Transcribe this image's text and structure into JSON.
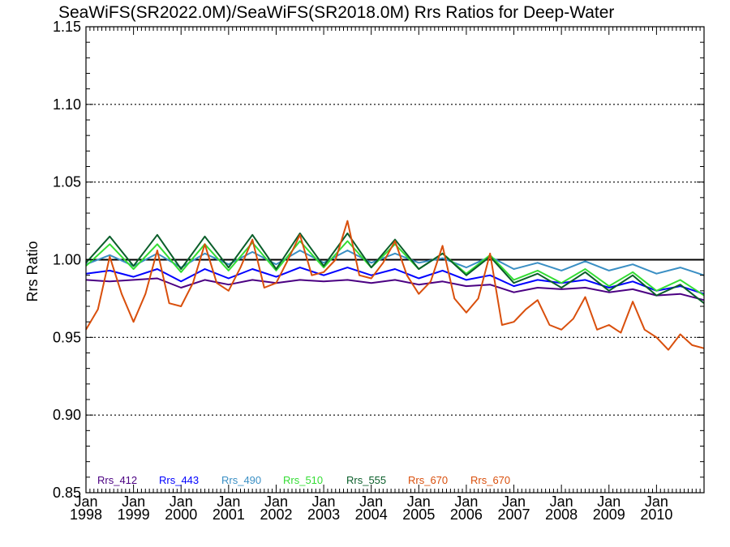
{
  "chart_data": {
    "type": "line",
    "title": "SeaWiFS(SR2022.0M)/SeaWiFS(SR2018.0M)  Rrs Ratios for Deep-Water",
    "ylabel": "Rrs Ratio",
    "xlabel": "",
    "ylim": [
      0.85,
      1.15
    ],
    "yticks": [
      "0.85",
      "0.90",
      "0.95",
      "1.00",
      "1.05",
      "1.10",
      "1.15"
    ],
    "xlim": [
      1998.0,
      2011.0
    ],
    "xticks": [
      {
        "month": "Jan",
        "year": "1998"
      },
      {
        "month": "Jan",
        "year": "1999"
      },
      {
        "month": "Jan",
        "year": "2000"
      },
      {
        "month": "Jan",
        "year": "2001"
      },
      {
        "month": "Jan",
        "year": "2002"
      },
      {
        "month": "Jan",
        "year": "2003"
      },
      {
        "month": "Jan",
        "year": "2004"
      },
      {
        "month": "Jan",
        "year": "2005"
      },
      {
        "month": "Jan",
        "year": "2006"
      },
      {
        "month": "Jan",
        "year": "2007"
      },
      {
        "month": "Jan",
        "year": "2008"
      },
      {
        "month": "Jan",
        "year": "2009"
      },
      {
        "month": "Jan",
        "year": "2010"
      }
    ],
    "grid": "dotted horizontal at labeled y ticks",
    "reference_line": 1.0,
    "legend_position": "bottom-left",
    "series": [
      {
        "name": "Rrs_412",
        "color": "#4b0082",
        "x": [
          1998.0,
          1998.5,
          1999.0,
          1999.5,
          2000.0,
          2000.5,
          2001.0,
          2001.5,
          2002.0,
          2002.5,
          2003.0,
          2003.5,
          2004.0,
          2004.5,
          2005.0,
          2005.5,
          2006.0,
          2006.5,
          2007.0,
          2007.5,
          2008.0,
          2008.5,
          2009.0,
          2009.5,
          2010.0,
          2010.5,
          2011.0
        ],
        "values": [
          0.987,
          0.986,
          0.987,
          0.988,
          0.982,
          0.987,
          0.984,
          0.987,
          0.985,
          0.987,
          0.986,
          0.987,
          0.985,
          0.987,
          0.984,
          0.986,
          0.983,
          0.984,
          0.979,
          0.982,
          0.981,
          0.982,
          0.979,
          0.981,
          0.977,
          0.978,
          0.974
        ]
      },
      {
        "name": "Rrs_443",
        "color": "#0000ff",
        "x": [
          1998.0,
          1998.5,
          1999.0,
          1999.5,
          2000.0,
          2000.5,
          2001.0,
          2001.5,
          2002.0,
          2002.5,
          2003.0,
          2003.5,
          2004.0,
          2004.5,
          2005.0,
          2005.5,
          2006.0,
          2006.5,
          2007.0,
          2007.5,
          2008.0,
          2008.5,
          2009.0,
          2009.5,
          2010.0,
          2010.5,
          2011.0
        ],
        "values": [
          0.991,
          0.993,
          0.989,
          0.994,
          0.986,
          0.994,
          0.988,
          0.994,
          0.989,
          0.995,
          0.99,
          0.995,
          0.99,
          0.994,
          0.988,
          0.993,
          0.987,
          0.99,
          0.983,
          0.987,
          0.985,
          0.987,
          0.982,
          0.986,
          0.98,
          0.983,
          0.978
        ]
      },
      {
        "name": "Rrs_490",
        "color": "#3a8fc4",
        "x": [
          1998.0,
          1998.5,
          1999.0,
          1999.5,
          2000.0,
          2000.5,
          2001.0,
          2001.5,
          2002.0,
          2002.5,
          2003.0,
          2003.5,
          2004.0,
          2004.5,
          2005.0,
          2005.5,
          2006.0,
          2006.5,
          2007.0,
          2007.5,
          2008.0,
          2008.5,
          2009.0,
          2009.5,
          2010.0,
          2010.5,
          2011.0
        ],
        "values": [
          0.997,
          1.003,
          0.996,
          1.004,
          0.995,
          1.004,
          0.997,
          1.005,
          0.997,
          1.006,
          0.998,
          1.006,
          0.998,
          1.004,
          0.998,
          1.001,
          0.995,
          1.002,
          0.994,
          0.998,
          0.993,
          0.999,
          0.993,
          0.997,
          0.991,
          0.995,
          0.99
        ]
      },
      {
        "name": "Rrs_510",
        "color": "#33dd33",
        "x": [
          1998.0,
          1998.5,
          1999.0,
          1999.5,
          2000.0,
          2000.5,
          2001.0,
          2001.5,
          2002.0,
          2002.5,
          2003.0,
          2003.5,
          2004.0,
          2004.5,
          2005.0,
          2005.5,
          2006.0,
          2006.5,
          2007.0,
          2007.5,
          2008.0,
          2008.5,
          2009.0,
          2009.5,
          2010.0,
          2010.5,
          2011.0
        ],
        "values": [
          0.996,
          1.01,
          0.994,
          1.01,
          0.992,
          1.01,
          0.993,
          1.011,
          0.993,
          1.012,
          0.995,
          1.012,
          0.995,
          1.01,
          0.994,
          1.004,
          0.991,
          1.003,
          0.987,
          0.993,
          0.985,
          0.994,
          0.983,
          0.992,
          0.98,
          0.987,
          0.977
        ]
      },
      {
        "name": "Rrs_555",
        "color": "#0a5e2a",
        "x": [
          1998.0,
          1998.5,
          1999.0,
          1999.5,
          2000.0,
          2000.5,
          2001.0,
          2001.5,
          2002.0,
          2002.5,
          2003.0,
          2003.5,
          2004.0,
          2004.5,
          2005.0,
          2005.5,
          2006.0,
          2006.5,
          2007.0,
          2007.5,
          2008.0,
          2008.5,
          2009.0,
          2009.5,
          2010.0,
          2010.5,
          2011.0
        ],
        "values": [
          0.998,
          1.015,
          0.996,
          1.016,
          0.994,
          1.015,
          0.995,
          1.016,
          0.994,
          1.017,
          0.996,
          1.017,
          0.995,
          1.013,
          0.994,
          1.004,
          0.99,
          1.002,
          0.985,
          0.991,
          0.982,
          0.992,
          0.98,
          0.99,
          0.977,
          0.984,
          0.972
        ]
      },
      {
        "name": "Rrs_670",
        "color": "#d94f0c",
        "x": [
          1998.0,
          1998.25,
          1998.5,
          1998.75,
          1999.0,
          1999.25,
          1999.5,
          1999.75,
          2000.0,
          2000.25,
          2000.5,
          2000.75,
          2001.0,
          2001.25,
          2001.5,
          2001.75,
          2002.0,
          2002.25,
          2002.5,
          2002.75,
          2003.0,
          2003.25,
          2003.5,
          2003.75,
          2004.0,
          2004.25,
          2004.5,
          2004.75,
          2005.0,
          2005.25,
          2005.5,
          2005.75,
          2006.0,
          2006.25,
          2006.5,
          2006.75,
          2007.0,
          2007.25,
          2007.5,
          2007.75,
          2008.0,
          2008.25,
          2008.5,
          2008.75,
          2009.0,
          2009.25,
          2009.5,
          2009.75,
          2010.0,
          2010.25,
          2010.5,
          2010.75,
          2011.0
        ],
        "values": [
          0.955,
          0.968,
          1.002,
          0.978,
          0.96,
          0.978,
          1.006,
          0.972,
          0.97,
          0.985,
          1.01,
          0.985,
          0.98,
          0.995,
          1.013,
          0.982,
          0.985,
          1.0,
          1.016,
          0.99,
          0.992,
          1.0,
          1.025,
          0.99,
          0.988,
          0.998,
          1.012,
          0.99,
          0.978,
          0.986,
          1.009,
          0.975,
          0.966,
          0.975,
          1.004,
          0.958,
          0.96,
          0.968,
          0.974,
          0.958,
          0.955,
          0.962,
          0.976,
          0.955,
          0.958,
          0.953,
          0.973,
          0.955,
          0.95,
          0.942,
          0.952,
          0.945,
          0.943
        ]
      },
      {
        "name": "Rrs_670",
        "color": "#d94f0c",
        "x": [],
        "values": []
      }
    ]
  }
}
